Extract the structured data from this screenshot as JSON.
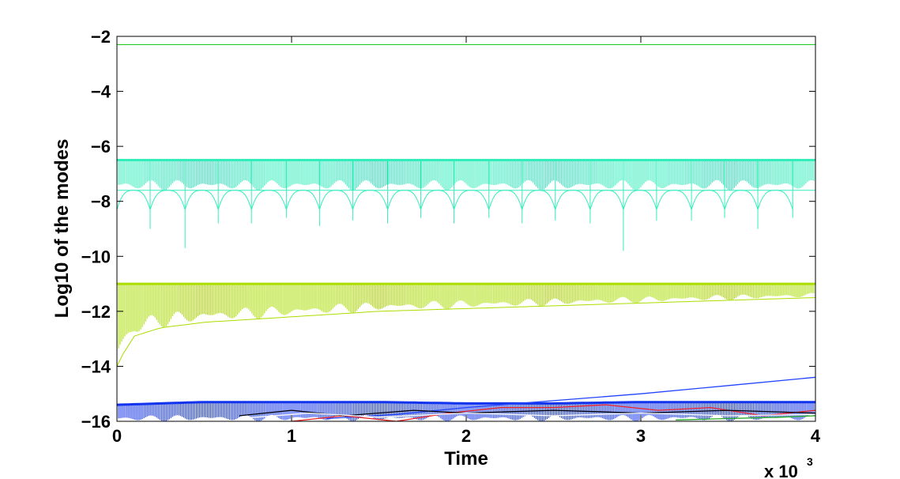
{
  "chart_data": {
    "type": "line",
    "title": "",
    "xlabel": "Time",
    "ylabel": "Log10 of the modes",
    "x_multiplier": "x 10",
    "x_multiplier_exp": "3",
    "xlim": [
      0,
      4
    ],
    "ylim": [
      -16,
      -2
    ],
    "xticks": [
      0,
      1,
      2,
      3,
      4
    ],
    "xtick_labels": [
      "0",
      "1",
      "2",
      "3",
      "4"
    ],
    "yticks": [
      -16,
      -14,
      -12,
      -10,
      -8,
      -6,
      -4,
      -2
    ],
    "ytick_labels": [
      "−16",
      "−14",
      "−12",
      "−10",
      "−8",
      "−6",
      "−4",
      "−2"
    ],
    "grid": false,
    "legend": "none",
    "series": [
      {
        "color": "#22cc22",
        "x": [
          0,
          4
        ],
        "upper": [
          -2.3,
          -2.3
        ],
        "lower": [
          -2.3,
          -2.3
        ]
      },
      {
        "color": "#33eebb",
        "x": [
          0,
          0.5,
          1,
          1.5,
          2,
          2.5,
          3,
          3.5,
          4
        ],
        "upper": [
          -6.5,
          -6.5,
          -6.5,
          -6.5,
          -6.5,
          -6.5,
          -6.5,
          -6.5,
          -6.5
        ],
        "lower": [
          -7.6,
          -7.6,
          -7.6,
          -7.6,
          -7.6,
          -7.6,
          -7.6,
          -7.6,
          -7.6
        ],
        "spike_x": [
          0.0,
          0.19,
          0.39,
          0.58,
          0.77,
          0.97,
          1.16,
          1.35,
          1.55,
          1.74,
          1.93,
          2.13,
          2.32,
          2.51,
          2.71,
          2.9,
          3.09,
          3.29,
          3.48,
          3.67,
          3.87
        ],
        "spike_y": [
          -8.5,
          -9.0,
          -9.7,
          -8.8,
          -8.8,
          -8.6,
          -8.9,
          -8.7,
          -8.8,
          -8.6,
          -8.8,
          -8.6,
          -8.8,
          -8.7,
          -8.8,
          -9.8,
          -8.7,
          -8.7,
          -8.6,
          -9.0,
          -8.6
        ]
      },
      {
        "color": "#aadd00",
        "x": [
          0,
          0.02,
          0.1,
          0.25,
          0.5,
          0.75,
          1,
          1.5,
          2,
          2.5,
          3,
          3.5,
          4
        ],
        "upper": [
          -11.0,
          -11.0,
          -11.0,
          -11.0,
          -11.0,
          -11.0,
          -11.0,
          -11.0,
          -11.0,
          -11.0,
          -11.0,
          -11.0,
          -11.0
        ],
        "lower": [
          -14.0,
          -13.7,
          -12.9,
          -12.6,
          -12.4,
          -12.3,
          -12.2,
          -12.0,
          -11.9,
          -11.8,
          -11.7,
          -11.6,
          -11.5
        ]
      },
      {
        "color": "#1133ee",
        "x": [
          0,
          0.5,
          1,
          1.5,
          2,
          2.5,
          3,
          3.5,
          4
        ],
        "upper": [
          -15.4,
          -15.3,
          -15.3,
          -15.3,
          -15.35,
          -15.35,
          -15.3,
          -15.3,
          -15.3
        ],
        "lower": [
          -16.0,
          -16.0,
          -16.0,
          -16.0,
          -16.0,
          -16.0,
          -16.0,
          -16.0,
          -16.0
        ]
      },
      {
        "color": "#2244ff",
        "x": [
          1.2,
          1.6,
          2.0,
          2.5,
          3.0,
          3.5,
          4.0
        ],
        "y": [
          -15.9,
          -15.75,
          -15.5,
          -15.25,
          -15.0,
          -14.7,
          -14.4
        ]
      },
      {
        "color": "#ee2222",
        "x": [
          1.0,
          1.3,
          1.6,
          1.9,
          2.2,
          2.5,
          2.8,
          3.1,
          3.4,
          3.7,
          4.0
        ],
        "y": [
          -16.0,
          -15.8,
          -16.0,
          -15.7,
          -15.5,
          -15.5,
          -15.4,
          -15.6,
          -15.5,
          -15.8,
          -15.6
        ]
      },
      {
        "color": "#000000",
        "x": [
          0.7,
          1.0,
          1.3,
          1.7,
          2.0,
          2.5,
          3.0,
          3.5,
          4.0
        ],
        "y": [
          -15.8,
          -15.6,
          -15.8,
          -15.6,
          -15.7,
          -15.6,
          -15.7,
          -15.6,
          -15.7
        ]
      },
      {
        "color": "#ffffff",
        "x": [
          0.7,
          1.1,
          1.5,
          2.0,
          2.5,
          3.0,
          3.5,
          4.0
        ],
        "y": [
          -15.9,
          -15.7,
          -15.85,
          -15.7,
          -15.8,
          -15.7,
          -15.8,
          -15.75
        ]
      },
      {
        "color": "#22aa22",
        "x": [
          3.2,
          3.5,
          3.8,
          4.0
        ],
        "y": [
          -15.95,
          -15.9,
          -15.85,
          -15.8
        ]
      }
    ]
  }
}
